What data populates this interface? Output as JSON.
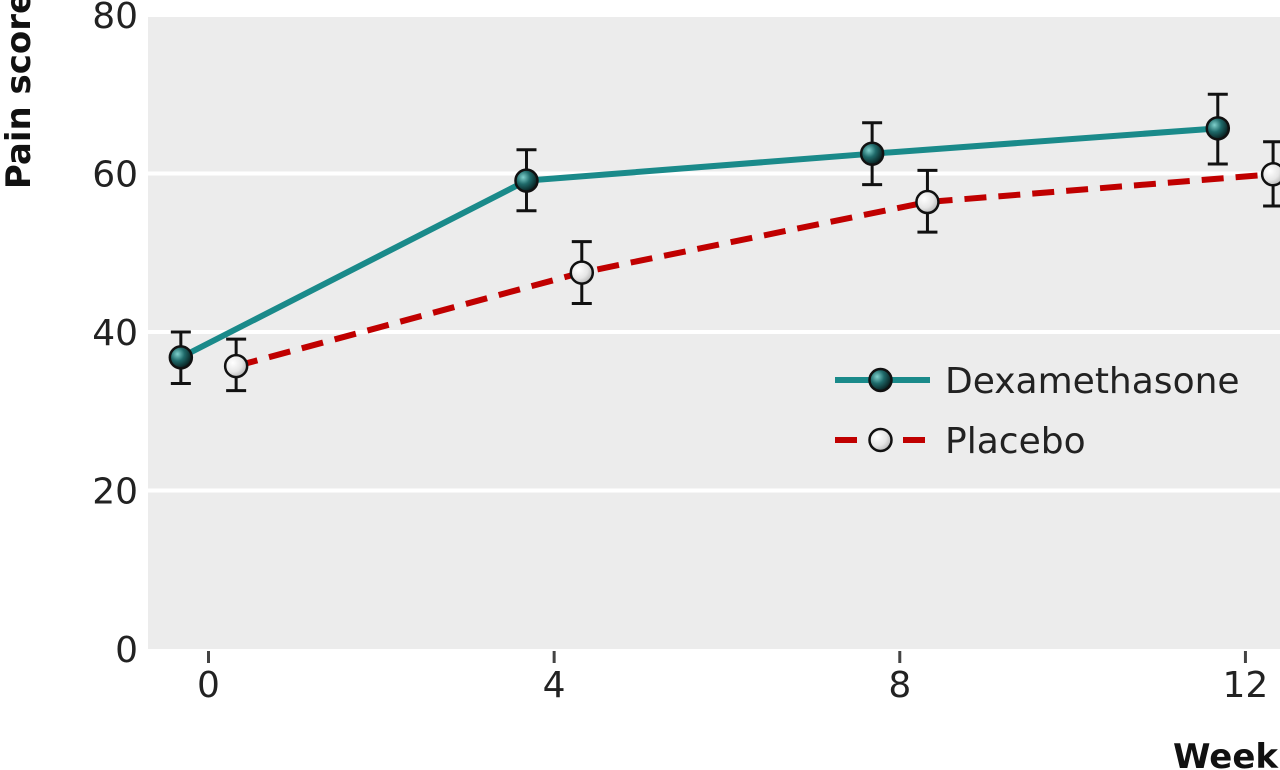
{
  "chart_data": {
    "type": "line",
    "title": "",
    "xlabel": "Week",
    "ylabel": "Pain score",
    "x": [
      0,
      4,
      8,
      12
    ],
    "xticks": [
      0,
      4,
      8,
      12
    ],
    "xtick_labels": [
      "0",
      "4",
      "8",
      "12"
    ],
    "yticks": [
      0,
      20,
      40,
      60,
      80
    ],
    "ytick_labels": [
      "0",
      "20",
      "40",
      "60",
      "80"
    ],
    "xlim": [
      -0.7,
      12.4
    ],
    "ylim": [
      0,
      80
    ],
    "grid": "horizontal",
    "legend_position": "right",
    "series": [
      {
        "name": "Dexamethasone",
        "color": "#1a8a8a",
        "line_style": "solid",
        "marker": "filled-dark-circle",
        "values": [
          36.8,
          59.1,
          62.5,
          65.7
        ],
        "err_low": [
          33.5,
          55.3,
          58.6,
          61.2
        ],
        "err_high": [
          40.0,
          63.0,
          66.4,
          70.0
        ]
      },
      {
        "name": "Placebo",
        "color": "#c00000",
        "line_style": "dashed",
        "marker": "open-light-circle",
        "values": [
          35.7,
          47.5,
          56.4,
          59.9
        ],
        "err_low": [
          32.6,
          43.6,
          52.6,
          55.9
        ],
        "err_high": [
          39.1,
          51.4,
          60.4,
          64.0
        ]
      }
    ]
  },
  "colors": {
    "plot_background": "#ececec",
    "gridline": "#ffffff",
    "errorbar": "#111111"
  }
}
